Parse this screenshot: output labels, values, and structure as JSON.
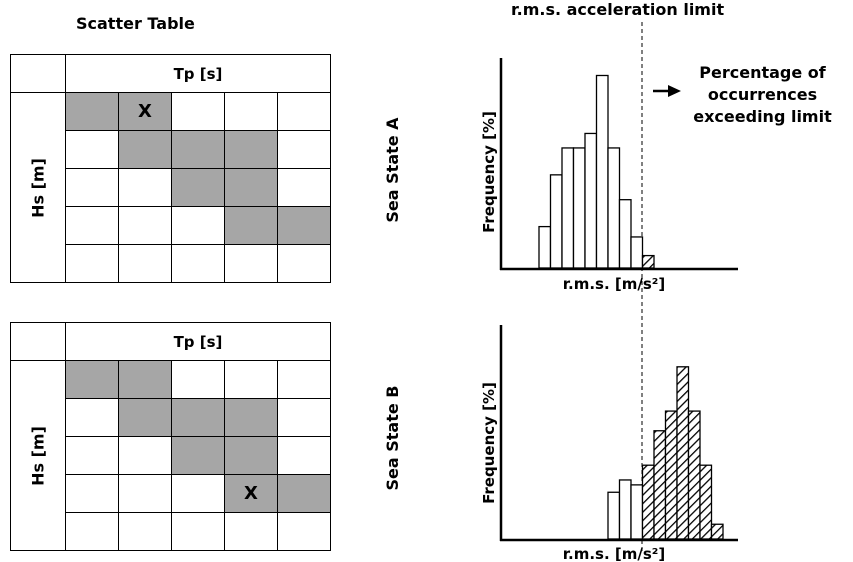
{
  "scatter_title": "Scatter Table",
  "limit_label": "r.m.s. acceleration limit",
  "exceed_label_lines": [
    "Percentage of",
    "occurrences",
    "exceeding limit"
  ],
  "sea_state_a": {
    "label": "Sea State A",
    "tp_label": "Tp [s]",
    "hs_label": "Hs [m]",
    "marker": "X",
    "shaded": [
      [
        1,
        1,
        0,
        0,
        0
      ],
      [
        0,
        1,
        1,
        1,
        0
      ],
      [
        0,
        0,
        1,
        1,
        0
      ],
      [
        0,
        0,
        0,
        1,
        1
      ],
      [
        0,
        0,
        0,
        0,
        0
      ]
    ],
    "marker_cell": [
      0,
      1
    ],
    "ylabel": "Frequency [%]",
    "xlabel": "r.m.s. [m/s²]",
    "bars": [
      2,
      4.5,
      5.8,
      5.8,
      6.5,
      9.3,
      5.8,
      3.3,
      1.5,
      0.6
    ],
    "bars_exceed_from": 9
  },
  "sea_state_b": {
    "label": "Sea State B",
    "tp_label": "Tp [s]",
    "hs_label": "Hs [m]",
    "marker": "X",
    "shaded": [
      [
        1,
        1,
        0,
        0,
        0
      ],
      [
        0,
        1,
        1,
        1,
        0
      ],
      [
        0,
        0,
        1,
        1,
        0
      ],
      [
        0,
        0,
        0,
        1,
        1
      ],
      [
        0,
        0,
        0,
        0,
        0
      ]
    ],
    "marker_cell": [
      3,
      3
    ],
    "ylabel": "Frequency [%]",
    "xlabel": "r.m.s. [m/s²]",
    "bars": [
      1.9,
      2.4,
      2.2,
      3.0,
      4.4,
      5.2,
      7.0,
      5.2,
      3.0,
      0.6
    ],
    "bars_exceed_from": 3
  },
  "colors": {
    "shade": "#a6a6a6",
    "line": "#000000"
  },
  "icons": {
    "arrow": "right-arrow-icon"
  }
}
